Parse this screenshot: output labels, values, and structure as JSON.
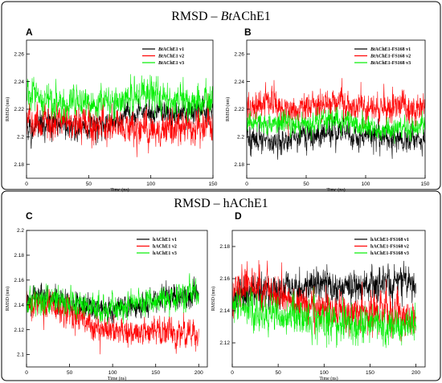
{
  "groups": [
    {
      "title_parts": [
        "RMSD – ",
        "Bt",
        "AChE1"
      ],
      "title_italic": [
        false,
        true,
        false
      ]
    },
    {
      "title_parts": [
        "RMSD – hAChE1"
      ],
      "title_italic": [
        false
      ]
    }
  ],
  "chart_data": [
    {
      "type": "line",
      "panel_label": "A",
      "xlabel": "Time (ns)",
      "ylabel": "RMSD (nm)",
      "xlim": [
        0,
        150
      ],
      "ylim": [
        2.17,
        2.27
      ],
      "xticks": [
        0,
        50,
        100,
        150
      ],
      "yticks": [
        2.18,
        2.2,
        2.22,
        2.24,
        2.26
      ],
      "ytick_labels": [
        "2.18",
        "2.2",
        "2.22",
        "2.24",
        "2.26"
      ],
      "legend_position": "top-right",
      "series": [
        {
          "name_parts": [
            "Bt",
            "AChE1 v1"
          ],
          "color": "#000000",
          "mean": [
            2.203,
            2.209,
            2.211,
            2.207,
            2.206,
            2.209,
            2.212,
            2.218,
            2.219,
            2.216,
            2.217,
            2.219,
            2.219
          ],
          "noise": 0.0055
        },
        {
          "name_parts": [
            "Bt",
            "AChE1 v2"
          ],
          "color": "#ff0000",
          "mean": [
            2.212,
            2.211,
            2.209,
            2.21,
            2.208,
            2.207,
            2.207,
            2.205,
            2.204,
            2.207,
            2.208,
            2.21,
            2.21
          ],
          "noise": 0.007
        },
        {
          "name_parts": [
            "Bt",
            "AChE1 v3"
          ],
          "color": "#00ee00",
          "mean": [
            2.231,
            2.228,
            2.226,
            2.225,
            2.225,
            2.226,
            2.226,
            2.228,
            2.233,
            2.226,
            2.225,
            2.226,
            2.227
          ],
          "noise": 0.0065
        }
      ]
    },
    {
      "type": "line",
      "panel_label": "B",
      "xlabel": "Time (ns)",
      "ylabel": "RMSD (nm)",
      "xlim": [
        0,
        150
      ],
      "ylim": [
        2.17,
        2.27
      ],
      "xticks": [
        0,
        50,
        100,
        150
      ],
      "yticks": [
        2.18,
        2.2,
        2.22,
        2.24,
        2.26
      ],
      "ytick_labels": [
        "2.18",
        "2.2",
        "2.22",
        "2.24",
        "2.26"
      ],
      "legend_position": "top-right",
      "series": [
        {
          "name_parts": [
            "Bt",
            "AChE1-FS168 v1"
          ],
          "color": "#000000",
          "mean": [
            2.201,
            2.198,
            2.197,
            2.2,
            2.201,
            2.202,
            2.203,
            2.202,
            2.2,
            2.199,
            2.198,
            2.199,
            2.199
          ],
          "noise": 0.0055
        },
        {
          "name_parts": [
            "Bt",
            "AChE1-FS168 v2"
          ],
          "color": "#ff0000",
          "mean": [
            2.221,
            2.224,
            2.223,
            2.222,
            2.222,
            2.223,
            2.224,
            2.222,
            2.223,
            2.221,
            2.222,
            2.221,
            2.221
          ],
          "noise": 0.0065
        },
        {
          "name_parts": [
            "Bt",
            "AChE1-FS168 v3"
          ],
          "color": "#00ee00",
          "mean": [
            2.211,
            2.211,
            2.21,
            2.209,
            2.209,
            2.212,
            2.213,
            2.21,
            2.206,
            2.205,
            2.205,
            2.206,
            2.208
          ],
          "noise": 0.0045
        }
      ]
    },
    {
      "type": "line",
      "panel_label": "C",
      "xlabel": "Time (ns)",
      "ylabel": "RMSD (nm)",
      "xlim": [
        0,
        210
      ],
      "ylim": [
        2.09,
        2.2
      ],
      "xticks": [
        0,
        50,
        100,
        150,
        200
      ],
      "yticks": [
        2.1,
        2.12,
        2.14,
        2.16,
        2.18,
        2.2
      ],
      "ytick_labels": [
        "2.1",
        "2.12",
        "2.14",
        "2.16",
        "2.18",
        "2.2"
      ],
      "legend_position": "top-right",
      "series": [
        {
          "name_parts": [
            "hAChE1 v1"
          ],
          "color": "#000000",
          "mean": [
            2.143,
            2.147,
            2.144,
            2.141,
            2.139,
            2.138,
            2.137,
            2.138,
            2.14,
            2.141,
            2.146,
            2.148,
            2.148
          ],
          "noise": 0.0055
        },
        {
          "name_parts": [
            "hAChE1 v2"
          ],
          "color": "#ff0000",
          "mean": [
            2.138,
            2.14,
            2.138,
            2.134,
            2.128,
            2.122,
            2.119,
            2.118,
            2.118,
            2.119,
            2.118,
            2.118,
            2.117
          ],
          "noise": 0.0065
        },
        {
          "name_parts": [
            "hAChE1 v3"
          ],
          "color": "#00ee00",
          "mean": [
            2.143,
            2.144,
            2.143,
            2.142,
            2.141,
            2.138,
            2.137,
            2.14,
            2.141,
            2.144,
            2.145,
            2.148,
            2.151
          ],
          "noise": 0.006
        }
      ]
    },
    {
      "type": "line",
      "panel_label": "D",
      "xlabel": "Time (ns)",
      "ylabel": "RMSD (nm)",
      "xlim": [
        0,
        210
      ],
      "ylim": [
        2.105,
        2.19
      ],
      "xticks": [
        0,
        50,
        100,
        150,
        200
      ],
      "yticks": [
        2.12,
        2.14,
        2.16,
        2.18
      ],
      "ytick_labels": [
        "2.12",
        "2.14",
        "2.16",
        "2.18"
      ],
      "legend_position": "top-right",
      "series": [
        {
          "name_parts": [
            "hAChE1-FS168 v1"
          ],
          "color": "#000000",
          "mean": [
            2.15,
            2.151,
            2.151,
            2.152,
            2.154,
            2.155,
            2.157,
            2.156,
            2.154,
            2.155,
            2.158,
            2.157,
            2.155
          ],
          "noise": 0.006
        },
        {
          "name_parts": [
            "hAChE1-FS168 v2"
          ],
          "color": "#ff0000",
          "mean": [
            2.151,
            2.155,
            2.153,
            2.149,
            2.144,
            2.143,
            2.143,
            2.14,
            2.138,
            2.139,
            2.138,
            2.137,
            2.136
          ],
          "noise": 0.007
        },
        {
          "name_parts": [
            "hAChE1-FS168 v3"
          ],
          "color": "#00ee00",
          "mean": [
            2.143,
            2.141,
            2.139,
            2.138,
            2.136,
            2.135,
            2.134,
            2.133,
            2.132,
            2.131,
            2.131,
            2.13,
            2.13
          ],
          "noise": 0.0065
        }
      ]
    }
  ]
}
